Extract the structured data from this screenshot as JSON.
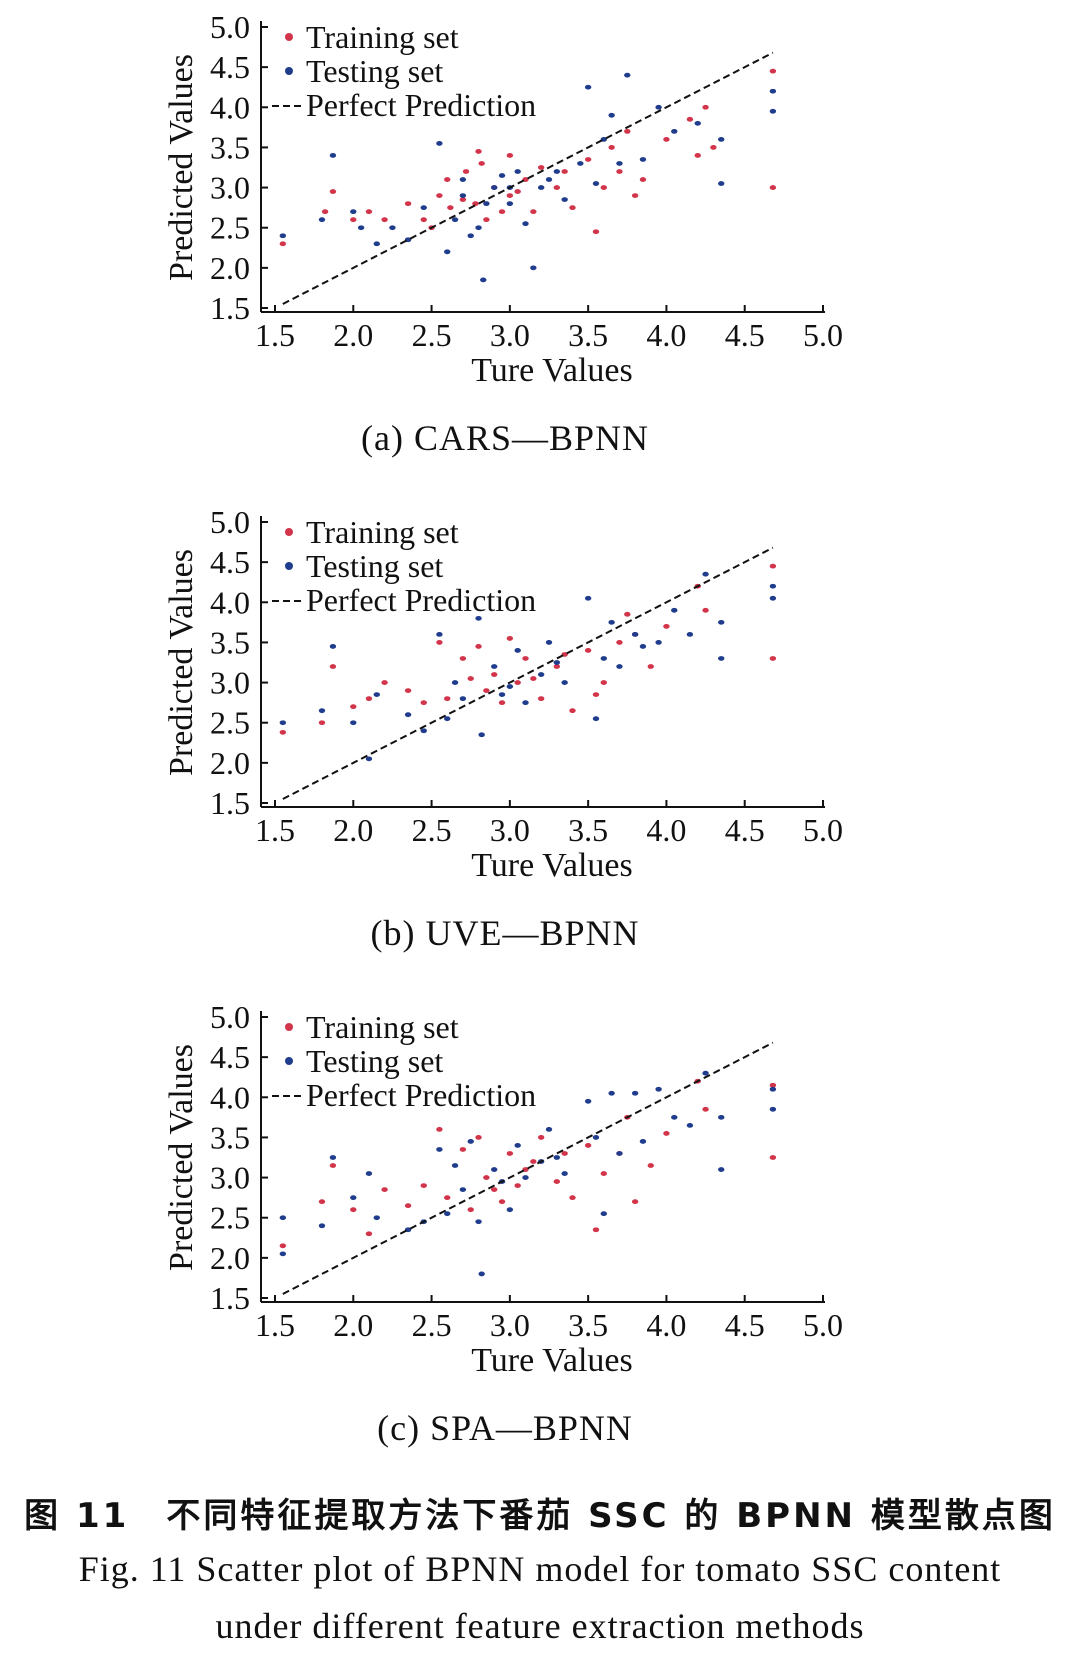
{
  "colors": {
    "training": "#d2344a",
    "testing": "#1f3d8c",
    "line": "#111111"
  },
  "chart_data": [
    {
      "type": "scatter",
      "caption": "(a) CARS—BPNN",
      "xlabel": "Ture Values",
      "ylabel": "Predicted Values",
      "xlim": [
        1.5,
        5.0
      ],
      "ylim": [
        1.5,
        5.0
      ],
      "xticks": [
        "1.5",
        "2.0",
        "2.5",
        "3.0",
        "3.5",
        "4.0",
        "4.5",
        "5.0"
      ],
      "yticks": [
        "5.0",
        "4.5",
        "4.0",
        "3.5",
        "3.0",
        "2.5",
        "2.0",
        "1.5"
      ],
      "legend": {
        "position": "top-left",
        "training": "Training set",
        "testing": "Testing set",
        "perfect": "Perfect Prediction"
      },
      "perfect_line": {
        "x": [
          1.55,
          4.68
        ],
        "y": [
          1.55,
          4.68
        ]
      },
      "series": [
        {
          "name": "Training set",
          "points": [
            [
              1.55,
              2.3
            ],
            [
              1.82,
              2.7
            ],
            [
              1.87,
              2.95
            ],
            [
              2.0,
              2.6
            ],
            [
              2.1,
              2.7
            ],
            [
              2.2,
              2.6
            ],
            [
              2.35,
              2.8
            ],
            [
              2.45,
              2.6
            ],
            [
              2.55,
              2.9
            ],
            [
              2.6,
              3.1
            ],
            [
              2.62,
              2.75
            ],
            [
              2.7,
              2.85
            ],
            [
              2.72,
              3.2
            ],
            [
              2.78,
              2.8
            ],
            [
              2.8,
              3.45
            ],
            [
              2.82,
              3.3
            ],
            [
              2.85,
              2.6
            ],
            [
              2.95,
              2.7
            ],
            [
              3.0,
              3.4
            ],
            [
              3.05,
              2.95
            ],
            [
              3.1,
              3.1
            ],
            [
              3.15,
              2.7
            ],
            [
              3.2,
              3.25
            ],
            [
              3.3,
              3.0
            ],
            [
              3.4,
              2.75
            ],
            [
              3.5,
              3.35
            ],
            [
              3.55,
              2.45
            ],
            [
              3.6,
              3.0
            ],
            [
              3.7,
              3.2
            ],
            [
              3.75,
              3.7
            ],
            [
              3.8,
              2.9
            ],
            [
              3.85,
              3.1
            ],
            [
              4.0,
              3.6
            ],
            [
              4.15,
              3.85
            ],
            [
              4.2,
              3.4
            ],
            [
              4.25,
              4.0
            ],
            [
              4.3,
              3.5
            ],
            [
              4.68,
              4.45
            ],
            [
              4.68,
              3.0
            ],
            [
              2.5,
              2.5
            ],
            [
              2.9,
              3.0
            ],
            [
              3.0,
              2.9
            ],
            [
              3.35,
              3.2
            ],
            [
              3.65,
              3.5
            ]
          ]
        },
        {
          "name": "Testing set",
          "points": [
            [
              1.55,
              2.4
            ],
            [
              1.8,
              2.6
            ],
            [
              1.87,
              3.4
            ],
            [
              2.0,
              2.7
            ],
            [
              2.05,
              2.5
            ],
            [
              2.15,
              2.3
            ],
            [
              2.25,
              2.5
            ],
            [
              2.35,
              2.35
            ],
            [
              2.45,
              2.75
            ],
            [
              2.55,
              3.55
            ],
            [
              2.6,
              2.2
            ],
            [
              2.65,
              2.6
            ],
            [
              2.7,
              3.1
            ],
            [
              2.75,
              2.4
            ],
            [
              2.8,
              2.5
            ],
            [
              2.83,
              1.85
            ],
            [
              2.85,
              2.8
            ],
            [
              2.9,
              3.0
            ],
            [
              2.95,
              3.15
            ],
            [
              3.0,
              2.8
            ],
            [
              3.05,
              3.2
            ],
            [
              3.1,
              2.55
            ],
            [
              3.15,
              2.0
            ],
            [
              3.2,
              3.0
            ],
            [
              3.25,
              3.1
            ],
            [
              3.35,
              2.85
            ],
            [
              3.45,
              3.3
            ],
            [
              3.5,
              4.25
            ],
            [
              3.55,
              3.05
            ],
            [
              3.6,
              3.6
            ],
            [
              3.65,
              3.9
            ],
            [
              3.7,
              3.3
            ],
            [
              3.75,
              4.4
            ],
            [
              3.85,
              3.35
            ],
            [
              3.95,
              4.0
            ],
            [
              4.05,
              3.7
            ],
            [
              4.2,
              3.8
            ],
            [
              4.35,
              3.6
            ],
            [
              4.35,
              3.05
            ],
            [
              4.68,
              4.2
            ],
            [
              4.68,
              3.95
            ],
            [
              3.0,
              3.0
            ],
            [
              2.7,
              2.9
            ],
            [
              3.3,
              3.2
            ]
          ]
        }
      ]
    },
    {
      "type": "scatter",
      "caption": "(b) UVE—BPNN",
      "xlabel": "Ture Values",
      "ylabel": "Predicted Values",
      "xlim": [
        1.5,
        5.0
      ],
      "ylim": [
        1.5,
        5.0
      ],
      "xticks": [
        "1.5",
        "2.0",
        "2.5",
        "3.0",
        "3.5",
        "4.0",
        "4.5",
        "5.0"
      ],
      "yticks": [
        "5.0",
        "4.5",
        "4.0",
        "3.5",
        "3.0",
        "2.5",
        "2.0",
        "1.5"
      ],
      "legend": {
        "position": "top-left",
        "training": "Training set",
        "testing": "Testing set",
        "perfect": "Perfect Prediction"
      },
      "perfect_line": {
        "x": [
          1.55,
          4.68
        ],
        "y": [
          1.55,
          4.68
        ]
      },
      "series": [
        {
          "name": "Training set",
          "points": [
            [
              1.55,
              2.38
            ],
            [
              1.8,
              2.5
            ],
            [
              1.87,
              3.2
            ],
            [
              2.0,
              2.7
            ],
            [
              2.1,
              2.8
            ],
            [
              2.2,
              3.0
            ],
            [
              2.35,
              2.9
            ],
            [
              2.45,
              2.75
            ],
            [
              2.55,
              3.5
            ],
            [
              2.6,
              2.8
            ],
            [
              2.7,
              3.3
            ],
            [
              2.75,
              3.05
            ],
            [
              2.8,
              3.45
            ],
            [
              2.85,
              2.9
            ],
            [
              2.95,
              2.75
            ],
            [
              3.0,
              3.55
            ],
            [
              3.05,
              3.0
            ],
            [
              3.1,
              3.3
            ],
            [
              3.2,
              2.8
            ],
            [
              3.3,
              3.2
            ],
            [
              3.4,
              2.65
            ],
            [
              3.5,
              3.4
            ],
            [
              3.55,
              2.85
            ],
            [
              3.6,
              3.0
            ],
            [
              3.7,
              3.5
            ],
            [
              3.75,
              3.85
            ],
            [
              3.8,
              3.6
            ],
            [
              3.9,
              3.2
            ],
            [
              4.0,
              3.7
            ],
            [
              4.2,
              4.2
            ],
            [
              4.25,
              3.9
            ],
            [
              4.68,
              4.45
            ],
            [
              4.68,
              3.3
            ],
            [
              2.9,
              3.1
            ],
            [
              3.15,
              3.05
            ],
            [
              3.35,
              3.35
            ]
          ]
        },
        {
          "name": "Testing set",
          "points": [
            [
              1.55,
              2.5
            ],
            [
              1.8,
              2.65
            ],
            [
              1.87,
              3.45
            ],
            [
              2.0,
              2.5
            ],
            [
              2.1,
              2.05
            ],
            [
              2.15,
              2.85
            ],
            [
              2.35,
              2.6
            ],
            [
              2.45,
              2.4
            ],
            [
              2.55,
              3.6
            ],
            [
              2.6,
              2.55
            ],
            [
              2.65,
              3.0
            ],
            [
              2.7,
              2.8
            ],
            [
              2.8,
              3.8
            ],
            [
              2.82,
              2.35
            ],
            [
              2.9,
              3.2
            ],
            [
              3.0,
              2.95
            ],
            [
              3.05,
              3.4
            ],
            [
              3.1,
              2.75
            ],
            [
              3.2,
              3.1
            ],
            [
              3.25,
              3.5
            ],
            [
              3.35,
              3.0
            ],
            [
              3.5,
              4.05
            ],
            [
              3.55,
              2.55
            ],
            [
              3.6,
              3.3
            ],
            [
              3.65,
              3.75
            ],
            [
              3.7,
              3.2
            ],
            [
              3.8,
              3.6
            ],
            [
              3.85,
              3.45
            ],
            [
              3.95,
              3.5
            ],
            [
              4.05,
              3.9
            ],
            [
              4.15,
              3.6
            ],
            [
              4.25,
              4.35
            ],
            [
              4.35,
              3.3
            ],
            [
              4.35,
              3.75
            ],
            [
              4.68,
              4.2
            ],
            [
              4.68,
              4.05
            ],
            [
              2.95,
              2.85
            ],
            [
              3.3,
              3.25
            ]
          ]
        }
      ]
    },
    {
      "type": "scatter",
      "caption": "(c) SPA—BPNN",
      "xlabel": "Ture Values",
      "ylabel": "Predicted Values",
      "xlim": [
        1.5,
        5.0
      ],
      "ylim": [
        1.5,
        5.0
      ],
      "xticks": [
        "1.5",
        "2.0",
        "2.5",
        "3.0",
        "3.5",
        "4.0",
        "4.5",
        "5.0"
      ],
      "yticks": [
        "5.0",
        "4.5",
        "4.0",
        "3.5",
        "3.0",
        "2.5",
        "2.0",
        "1.5"
      ],
      "legend": {
        "position": "top-left",
        "training": "Training set",
        "testing": "Testing set",
        "perfect": "Perfect Prediction"
      },
      "perfect_line": {
        "x": [
          1.55,
          4.68
        ],
        "y": [
          1.55,
          4.68
        ]
      },
      "series": [
        {
          "name": "Training set",
          "points": [
            [
              1.55,
              2.15
            ],
            [
              1.8,
              2.7
            ],
            [
              1.87,
              3.15
            ],
            [
              2.0,
              2.6
            ],
            [
              2.1,
              2.3
            ],
            [
              2.2,
              2.85
            ],
            [
              2.35,
              2.65
            ],
            [
              2.45,
              2.9
            ],
            [
              2.55,
              3.6
            ],
            [
              2.6,
              2.75
            ],
            [
              2.7,
              3.35
            ],
            [
              2.75,
              2.6
            ],
            [
              2.8,
              3.5
            ],
            [
              2.85,
              3.0
            ],
            [
              2.95,
              2.7
            ],
            [
              3.0,
              3.3
            ],
            [
              3.05,
              2.9
            ],
            [
              3.1,
              3.1
            ],
            [
              3.2,
              3.5
            ],
            [
              3.3,
              2.95
            ],
            [
              3.4,
              2.75
            ],
            [
              3.5,
              3.4
            ],
            [
              3.55,
              2.35
            ],
            [
              3.6,
              3.05
            ],
            [
              3.7,
              3.3
            ],
            [
              3.75,
              3.75
            ],
            [
              3.8,
              2.7
            ],
            [
              3.9,
              3.15
            ],
            [
              4.0,
              3.55
            ],
            [
              4.2,
              4.2
            ],
            [
              4.25,
              3.85
            ],
            [
              4.68,
              4.15
            ],
            [
              4.68,
              3.25
            ],
            [
              2.9,
              2.85
            ],
            [
              3.15,
              3.2
            ],
            [
              3.35,
              3.3
            ]
          ]
        },
        {
          "name": "Testing set",
          "points": [
            [
              1.55,
              2.5
            ],
            [
              1.55,
              2.05
            ],
            [
              1.8,
              2.4
            ],
            [
              1.87,
              3.25
            ],
            [
              2.0,
              2.75
            ],
            [
              2.1,
              3.05
            ],
            [
              2.15,
              2.5
            ],
            [
              2.35,
              2.35
            ],
            [
              2.45,
              2.45
            ],
            [
              2.55,
              3.35
            ],
            [
              2.6,
              2.55
            ],
            [
              2.65,
              3.15
            ],
            [
              2.7,
              2.85
            ],
            [
              2.75,
              3.45
            ],
            [
              2.8,
              2.45
            ],
            [
              2.82,
              1.8
            ],
            [
              2.9,
              3.1
            ],
            [
              3.0,
              2.6
            ],
            [
              3.05,
              3.4
            ],
            [
              3.1,
              3.0
            ],
            [
              3.2,
              3.2
            ],
            [
              3.25,
              3.6
            ],
            [
              3.35,
              3.05
            ],
            [
              3.5,
              3.95
            ],
            [
              3.55,
              3.5
            ],
            [
              3.6,
              2.55
            ],
            [
              3.65,
              4.05
            ],
            [
              3.7,
              3.3
            ],
            [
              3.8,
              4.05
            ],
            [
              3.85,
              3.45
            ],
            [
              3.95,
              4.1
            ],
            [
              4.05,
              3.75
            ],
            [
              4.15,
              3.65
            ],
            [
              4.25,
              4.3
            ],
            [
              4.35,
              3.1
            ],
            [
              4.35,
              3.75
            ],
            [
              4.68,
              4.1
            ],
            [
              4.68,
              3.85
            ],
            [
              2.95,
              2.95
            ],
            [
              3.3,
              3.25
            ]
          ]
        }
      ]
    }
  ],
  "figure_caption": {
    "zh": "图 11　不同特征提取方法下番茄 SSC 的 BPNN 模型散点图",
    "en_line1": "Fig. 11 Scatter plot of BPNN model for tomato SSC content",
    "en_line2": "under different feature extraction methods"
  }
}
